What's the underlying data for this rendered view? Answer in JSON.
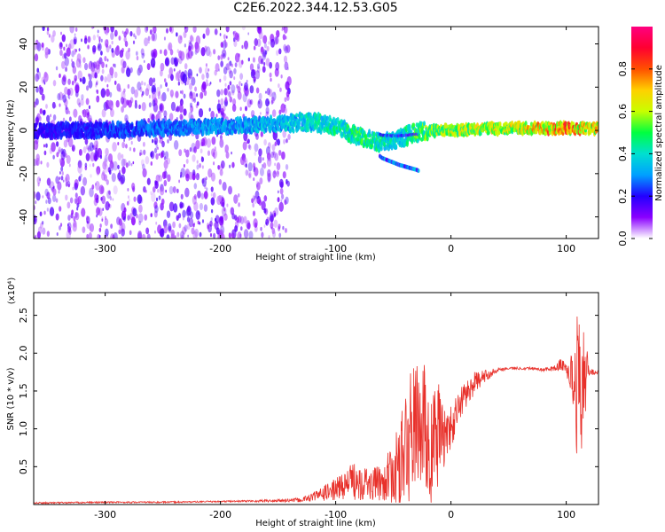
{
  "title": "C2E6.2022.344.12.53.G05",
  "chart_data": [
    {
      "type": "heatmap",
      "xlabel": "Height of straight line (km)",
      "ylabel": "Frequency (Hz)",
      "xlim": [
        -362,
        128
      ],
      "ylim": [
        -50,
        48
      ],
      "xticks": [
        -300,
        -200,
        -100,
        0,
        100
      ],
      "yticks": [
        -40,
        -20,
        0,
        20,
        40
      ],
      "colorbar": {
        "label": "Normalized spectral amplitude",
        "range": [
          0,
          1
        ],
        "ticks": [
          "0.0",
          "0.2",
          "0.4",
          "0.6",
          "0.8"
        ],
        "colormap": [
          "#ffffff",
          "#8a00ff",
          "#2200ff",
          "#00a0ff",
          "#00e0d0",
          "#00ff40",
          "#c8ff00",
          "#ffd000",
          "#ff5000",
          "#ff0030",
          "#ff0080"
        ]
      },
      "ridge": {
        "x": [
          -362,
          -300,
          -250,
          -200,
          -150,
          -120,
          -100,
          -80,
          -60,
          -45,
          -30,
          -20,
          0,
          50,
          100,
          128
        ],
        "freq": [
          0,
          0,
          1,
          2,
          3,
          4,
          2,
          -3,
          -6,
          -4,
          -1,
          0,
          0,
          1,
          1,
          1
        ],
        "amplitude": [
          0.15,
          0.2,
          0.25,
          0.3,
          0.35,
          0.4,
          0.45,
          0.5,
          0.45,
          0.4,
          0.55,
          0.6,
          0.65,
          0.7,
          0.9,
          0.75
        ]
      },
      "grid": false,
      "legend": "right colorbar"
    },
    {
      "type": "line",
      "xlabel": "Height of straight line (km)",
      "ylabel": "SNR (10 * v/v)",
      "y_scale_label": "(x10⁴)",
      "xlim": [
        -362,
        128
      ],
      "ylim": [
        0,
        2.8
      ],
      "xticks": [
        -300,
        -200,
        -100,
        0,
        100
      ],
      "yticks": [
        0.5,
        1.0,
        1.5,
        2.0,
        2.5
      ],
      "ytick_labels": [
        "0.5",
        "1.0",
        "1.5",
        "2.0",
        "2.5"
      ],
      "color": "#e8302a",
      "series": [
        {
          "x": [
            -362,
            -300,
            -250,
            -200,
            -150,
            -130,
            -120,
            -110,
            -100,
            -90,
            -80,
            -70,
            -60,
            -50,
            -45,
            -40,
            -35,
            -30,
            -25,
            -20,
            -15,
            -10,
            -5,
            0,
            5,
            10,
            20,
            30,
            40,
            50,
            60,
            70,
            80,
            90,
            95,
            100,
            105,
            108,
            112,
            116,
            120,
            128
          ],
          "y": [
            0.02,
            0.03,
            0.03,
            0.04,
            0.05,
            0.06,
            0.1,
            0.15,
            0.2,
            0.28,
            0.35,
            0.25,
            0.3,
            0.4,
            0.5,
            0.7,
            0.9,
            1.1,
            1.0,
            0.9,
            0.7,
            1.0,
            0.9,
            1.0,
            1.2,
            1.4,
            1.6,
            1.7,
            1.78,
            1.8,
            1.8,
            1.8,
            1.78,
            1.8,
            1.85,
            1.8,
            1.7,
            1.6,
            1.55,
            1.7,
            1.75,
            1.75
          ],
          "noise_amp": [
            0.01,
            0.01,
            0.01,
            0.01,
            0.02,
            0.03,
            0.06,
            0.1,
            0.15,
            0.2,
            0.3,
            0.2,
            0.25,
            0.4,
            0.6,
            0.8,
            0.9,
            0.8,
            0.9,
            1.0,
            0.9,
            0.6,
            0.4,
            0.3,
            0.25,
            0.2,
            0.15,
            0.08,
            0.03,
            0.02,
            0.02,
            0.02,
            0.02,
            0.04,
            0.08,
            0.1,
            0.3,
            0.9,
            1.0,
            0.6,
            0.05,
            0.02
          ]
        }
      ],
      "grid": false,
      "legend": "none"
    }
  ]
}
